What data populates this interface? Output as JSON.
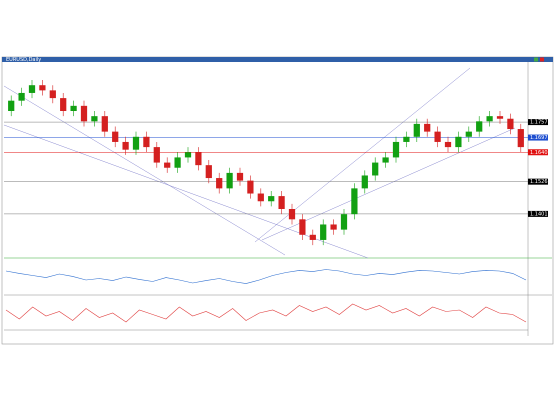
{
  "window_title": "EURUSD,Daily",
  "chart_data": {
    "type": "candlestick",
    "ylim": [
      1.123,
      1.199
    ],
    "up_color": "#12a012",
    "down_color": "#d42020",
    "open": [
      1.18,
      1.184,
      1.187,
      1.19,
      1.188,
      1.185,
      1.18,
      1.182,
      1.176,
      1.178,
      1.172,
      1.168,
      1.165,
      1.17,
      1.166,
      1.16,
      1.158,
      1.162,
      1.164,
      1.159,
      1.154,
      1.15,
      1.156,
      1.153,
      1.148,
      1.145,
      1.147,
      1.142,
      1.138,
      1.132,
      1.13,
      1.136,
      1.134,
      1.14,
      1.15,
      1.155,
      1.16,
      1.162,
      1.168,
      1.17,
      1.175,
      1.172,
      1.168,
      1.166,
      1.17,
      1.172,
      1.176,
      1.178,
      1.177,
      1.173
    ],
    "high": [
      1.186,
      1.189,
      1.192,
      1.192,
      1.19,
      1.187,
      1.184,
      1.184,
      1.18,
      1.18,
      1.174,
      1.17,
      1.172,
      1.172,
      1.168,
      1.162,
      1.164,
      1.166,
      1.166,
      1.161,
      1.156,
      1.158,
      1.158,
      1.155,
      1.15,
      1.149,
      1.149,
      1.144,
      1.14,
      1.134,
      1.138,
      1.138,
      1.142,
      1.152,
      1.157,
      1.162,
      1.164,
      1.17,
      1.172,
      1.177,
      1.177,
      1.174,
      1.17,
      1.172,
      1.174,
      1.178,
      1.18,
      1.18,
      1.179,
      1.175
    ],
    "low": [
      1.178,
      1.182,
      1.185,
      1.186,
      1.183,
      1.178,
      1.178,
      1.174,
      1.174,
      1.17,
      1.166,
      1.163,
      1.163,
      1.164,
      1.158,
      1.156,
      1.156,
      1.16,
      1.157,
      1.152,
      1.148,
      1.148,
      1.151,
      1.146,
      1.143,
      1.143,
      1.14,
      1.136,
      1.13,
      1.128,
      1.128,
      1.132,
      1.132,
      1.138,
      1.148,
      1.153,
      1.158,
      1.16,
      1.166,
      1.168,
      1.17,
      1.166,
      1.164,
      1.164,
      1.168,
      1.17,
      1.174,
      1.175,
      1.171,
      1.164
    ],
    "close": [
      1.184,
      1.187,
      1.19,
      1.188,
      1.185,
      1.18,
      1.182,
      1.176,
      1.178,
      1.172,
      1.168,
      1.165,
      1.17,
      1.166,
      1.16,
      1.158,
      1.162,
      1.164,
      1.159,
      1.154,
      1.15,
      1.156,
      1.153,
      1.148,
      1.145,
      1.147,
      1.142,
      1.138,
      1.132,
      1.13,
      1.136,
      1.134,
      1.14,
      1.15,
      1.155,
      1.16,
      1.162,
      1.168,
      1.17,
      1.175,
      1.172,
      1.168,
      1.166,
      1.17,
      1.172,
      1.176,
      1.178,
      1.177,
      1.173,
      1.166
    ],
    "price_labels": [
      {
        "value": 1.1757,
        "label": "1.1757",
        "color": "#000000"
      },
      {
        "value": 1.1697,
        "label": "1.1697",
        "color": "#1f4fd0"
      },
      {
        "value": 1.164,
        "label": "1.1640",
        "color": "#e01010"
      },
      {
        "value": 1.1526,
        "label": "1.1526",
        "color": "#000000"
      },
      {
        "value": 1.1401,
        "label": "1.1401",
        "color": "#000000"
      }
    ],
    "indicator1": {
      "ylim": [
        0,
        100
      ],
      "color": "#3070d0",
      "values": [
        70,
        62,
        55,
        48,
        60,
        52,
        40,
        45,
        38,
        50,
        42,
        35,
        48,
        40,
        30,
        38,
        45,
        35,
        28,
        40,
        55,
        65,
        72,
        68,
        75,
        70,
        60,
        55,
        62,
        58,
        66,
        72,
        70,
        65,
        60,
        68,
        72,
        70,
        62,
        40
      ]
    },
    "indicator2": {
      "ylim": [
        0,
        100
      ],
      "color": "#e04040",
      "values": [
        60,
        30,
        70,
        40,
        55,
        25,
        65,
        35,
        50,
        20,
        60,
        45,
        30,
        70,
        40,
        55,
        35,
        65,
        25,
        50,
        60,
        40,
        75,
        55,
        70,
        45,
        80,
        60,
        75,
        50,
        65,
        40,
        70,
        55,
        60,
        35,
        70,
        50,
        45,
        20
      ]
    }
  }
}
